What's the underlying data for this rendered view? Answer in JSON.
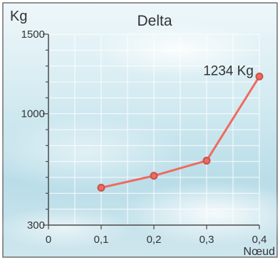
{
  "chart_data": {
    "type": "line",
    "title": "Delta",
    "xlabel": "Nœud",
    "ylabel": "Kg",
    "xlim": [
      0,
      0.4
    ],
    "ylim": [
      300,
      1500
    ],
    "x_ticks": [
      "0",
      "0,1",
      "0,2",
      "0,3",
      "0,4"
    ],
    "y_ticks": [
      "300",
      "1000",
      "1500"
    ],
    "grid": true,
    "legend": "none",
    "series": [
      {
        "x": [
          0.1,
          0.2,
          0.3,
          0.4
        ],
        "values": [
          535,
          610,
          705,
          1234
        ],
        "color": "#ee6b60"
      }
    ],
    "annotations": [
      {
        "text": "1234 Kg",
        "x": 0.4,
        "y": 1234
      }
    ],
    "colors": {
      "background": "#cfe7ee",
      "grid": "#ffffff",
      "line": "#ee6b60",
      "marker": "#c8524d",
      "axis": "#4a4a4a",
      "text": "#333333"
    }
  }
}
